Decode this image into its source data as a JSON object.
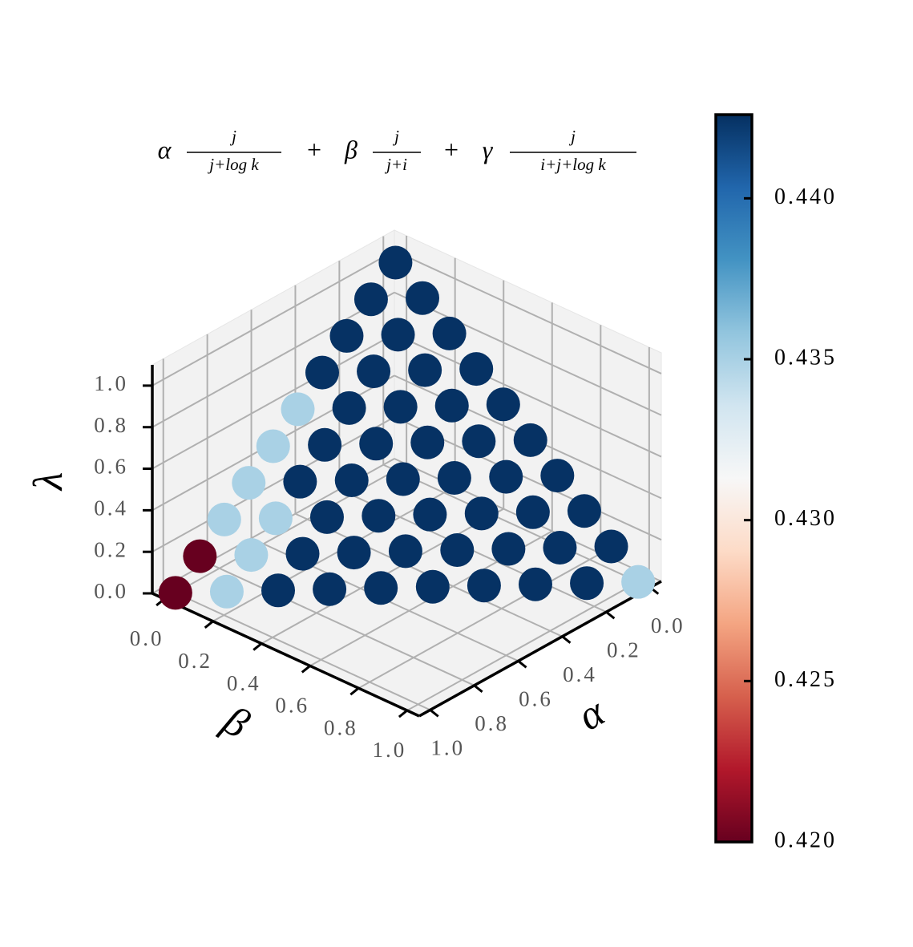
{
  "chart_data": {
    "type": "scatter3d",
    "title": {
      "terms": [
        {
          "coefficient": "α",
          "numerator": "j",
          "denominator": "j+log k"
        },
        {
          "coefficient": "β",
          "numerator": "j",
          "denominator": "j+i"
        },
        {
          "coefficient": "γ",
          "numerator": "j",
          "denominator": "i+j+log k"
        }
      ],
      "operator": "+"
    },
    "xlabel": "α",
    "ylabel": "β",
    "zlabel": "λ",
    "x": [
      0,
      0.111,
      0,
      0.222,
      0.111,
      0,
      0.333,
      0.222,
      0.111,
      0,
      0.444,
      0.333,
      0.222,
      0.111,
      0,
      0.556,
      0.444,
      0.333,
      0.222,
      0.111,
      0,
      0.667,
      0.556,
      0.444,
      0.333,
      0.222,
      0.111,
      0,
      0.778,
      0.667,
      0.556,
      0.444,
      0.333,
      0.222,
      0.111,
      0,
      0.889,
      0.778,
      0.667,
      0.556,
      0.444,
      0.333,
      0.222,
      0.111,
      0,
      1,
      0.889,
      0.778,
      0.667,
      0.556,
      0.444,
      0.333,
      0.222,
      0.111,
      0
    ],
    "y": [
      0,
      0,
      0.111,
      0,
      0.111,
      0.222,
      0,
      0.111,
      0.222,
      0.333,
      0,
      0.111,
      0.222,
      0.333,
      0.444,
      0,
      0.111,
      0.222,
      0.333,
      0.444,
      0.556,
      0,
      0.111,
      0.222,
      0.333,
      0.444,
      0.556,
      0.667,
      0,
      0.111,
      0.222,
      0.333,
      0.444,
      0.556,
      0.667,
      0.778,
      0,
      0.111,
      0.222,
      0.333,
      0.444,
      0.556,
      0.667,
      0.778,
      0.889,
      0,
      0.111,
      0.222,
      0.333,
      0.444,
      0.556,
      0.667,
      0.778,
      0.889,
      1
    ],
    "z": [
      1,
      0.889,
      0.889,
      0.778,
      0.778,
      0.778,
      0.667,
      0.667,
      0.667,
      0.667,
      0.556,
      0.556,
      0.556,
      0.556,
      0.556,
      0.444,
      0.444,
      0.444,
      0.444,
      0.444,
      0.444,
      0.333,
      0.333,
      0.333,
      0.333,
      0.333,
      0.333,
      0.333,
      0.222,
      0.222,
      0.222,
      0.222,
      0.222,
      0.222,
      0.222,
      0.222,
      0.111,
      0.111,
      0.111,
      0.111,
      0.111,
      0.111,
      0.111,
      0.111,
      0.111,
      0,
      0,
      0,
      0,
      0,
      0,
      0,
      0,
      0,
      0
    ],
    "values": [
      0.4425,
      0.4425,
      0.4425,
      0.4425,
      0.4425,
      0.4425,
      0.4425,
      0.4425,
      0.4425,
      0.4425,
      0.435,
      0.4425,
      0.4425,
      0.4425,
      0.4425,
      0.435,
      0.4425,
      0.4425,
      0.4425,
      0.4425,
      0.4425,
      0.435,
      0.4425,
      0.4425,
      0.4425,
      0.4425,
      0.4425,
      0.4425,
      0.435,
      0.435,
      0.4425,
      0.4425,
      0.4425,
      0.4425,
      0.4425,
      0.4425,
      0.42,
      0.435,
      0.4425,
      0.4425,
      0.4425,
      0.4425,
      0.4425,
      0.4425,
      0.4425,
      0.42,
      0.435,
      0.4425,
      0.4425,
      0.4425,
      0.4425,
      0.4425,
      0.4425,
      0.4425,
      0.435
    ],
    "xlim": [
      -0.05,
      1.05
    ],
    "ylim": [
      -0.05,
      1.05
    ],
    "zlim": [
      0,
      1.1
    ],
    "xticks": [
      {
        "value": 0,
        "label": "0.0"
      },
      0.2,
      0.4,
      0.6,
      0.8,
      {
        "value": 1,
        "label": "1.0"
      }
    ],
    "yticks": [
      {
        "value": 0,
        "label": "0.0"
      },
      0.2,
      0.4,
      0.6,
      0.8,
      {
        "value": 1,
        "label": "1.0"
      }
    ],
    "zticks": [
      {
        "value": 0,
        "label": "0.0"
      },
      0.2,
      0.4,
      0.6,
      0.8,
      {
        "value": 1,
        "label": "1.0"
      }
    ],
    "grid": true,
    "colorbar": {
      "cmap": "RdBu",
      "clim": [
        0.42,
        0.4426
      ],
      "ticks": [
        {
          "value": 0.42,
          "label": "0.420"
        },
        0.425,
        {
          "value": 0.43,
          "label": "0.430"
        },
        0.435,
        {
          "value": 0.44,
          "label": "0.440"
        }
      ]
    }
  }
}
